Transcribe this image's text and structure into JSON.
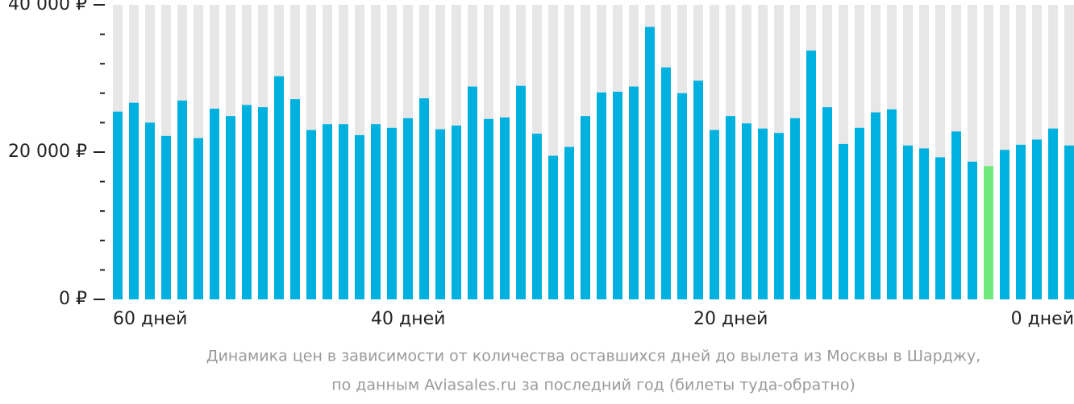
{
  "chart_data": {
    "type": "bar",
    "caption": [
      "Динамика цен в зависимости от количества оставшихся дней до вылета из Москвы в Шарджу,",
      "по данным Aviasales.ru за последний год (билеты туда-обратно)"
    ],
    "categories": [
      "60 дней",
      null,
      null,
      null,
      null,
      null,
      null,
      null,
      null,
      null,
      null,
      null,
      null,
      null,
      null,
      null,
      "40 дней",
      null,
      null,
      null,
      null,
      null,
      null,
      null,
      null,
      null,
      null,
      null,
      null,
      null,
      null,
      null,
      null,
      null,
      null,
      null,
      "20 дней",
      null,
      null,
      null,
      null,
      null,
      null,
      null,
      null,
      null,
      null,
      null,
      null,
      null,
      null,
      null,
      null,
      null,
      null,
      null,
      null,
      null,
      null,
      "0 дней"
    ],
    "values": [
      25500,
      26700,
      24000,
      22200,
      27000,
      21900,
      25900,
      24900,
      26400,
      26100,
      30300,
      27200,
      23000,
      23800,
      23800,
      22300,
      23800,
      23300,
      24600,
      27300,
      23100,
      23600,
      28900,
      24500,
      24700,
      29000,
      22500,
      19500,
      20700,
      24900,
      28100,
      28200,
      28900,
      37000,
      31500,
      28000,
      29700,
      23000,
      24900,
      23900,
      23200,
      22600,
      24600,
      33800,
      26100,
      21100,
      23300,
      25400,
      25800,
      20900,
      20500,
      19300,
      22800,
      18700,
      18100,
      20300,
      21000,
      21700,
      23200,
      20900
    ],
    "color": "#00b1df",
    "min_color": "#6fe97b",
    "background_color": "#e7e7e7",
    "ylim": [
      0,
      40000
    ],
    "yticks": [
      {
        "value": 0,
        "label": "0 ₽"
      },
      {
        "value": 20000,
        "label": "20 000 ₽"
      },
      {
        "value": 40000,
        "label": "40 000 ₽"
      }
    ],
    "minor_yticks": [
      4000,
      8000,
      12000,
      16000,
      24000,
      28000,
      32000,
      36000
    ]
  }
}
